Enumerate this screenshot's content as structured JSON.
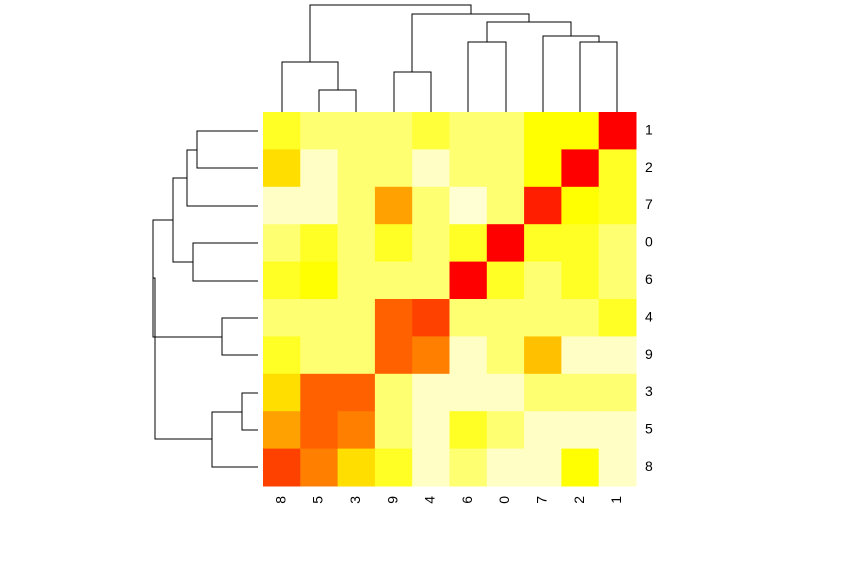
{
  "chart_data": {
    "type": "heatmap",
    "rows": [
      "1",
      "2",
      "7",
      "0",
      "6",
      "4",
      "9",
      "3",
      "5",
      "8"
    ],
    "columns": [
      "8",
      "5",
      "3",
      "9",
      "4",
      "6",
      "0",
      "7",
      "2",
      "1"
    ],
    "values": [
      [
        0.72,
        0.83,
        0.83,
        0.83,
        0.75,
        0.83,
        0.83,
        0.67,
        0.67,
        0
      ],
      [
        0.58,
        0.95,
        0.83,
        0.83,
        0.95,
        0.83,
        0.83,
        0.67,
        0,
        0.72
      ],
      [
        0.95,
        0.95,
        0.83,
        0.42,
        0.83,
        0.97,
        0.83,
        0.08,
        0.67,
        0.72
      ],
      [
        0.83,
        0.72,
        0.83,
        0.72,
        0.83,
        0.72,
        0,
        0.72,
        0.72,
        0.83
      ],
      [
        0.72,
        0.67,
        0.83,
        0.83,
        0.83,
        0,
        0.72,
        0.83,
        0.72,
        0.83
      ],
      [
        0.83,
        0.83,
        0.83,
        0.25,
        0.17,
        0.83,
        0.83,
        0.83,
        0.83,
        0.72
      ],
      [
        0.72,
        0.83,
        0.83,
        0.25,
        0.33,
        0.95,
        0.83,
        0.5,
        0.95,
        0.95
      ],
      [
        0.58,
        0.25,
        0.25,
        0.83,
        0.95,
        0.95,
        0.95,
        0.83,
        0.83,
        0.83
      ],
      [
        0.42,
        0.25,
        0.33,
        0.83,
        0.95,
        0.72,
        0.83,
        0.95,
        0.95,
        0.95
      ],
      [
        0.17,
        0.33,
        0.58,
        0.72,
        0.95,
        0.83,
        0.95,
        0.95,
        0.67,
        0.95
      ]
    ],
    "zlim": [
      0,
      1
    ],
    "colors": [
      "#ff0000",
      "#ff8000",
      "#ffff00",
      "#ffffe8"
    ]
  }
}
